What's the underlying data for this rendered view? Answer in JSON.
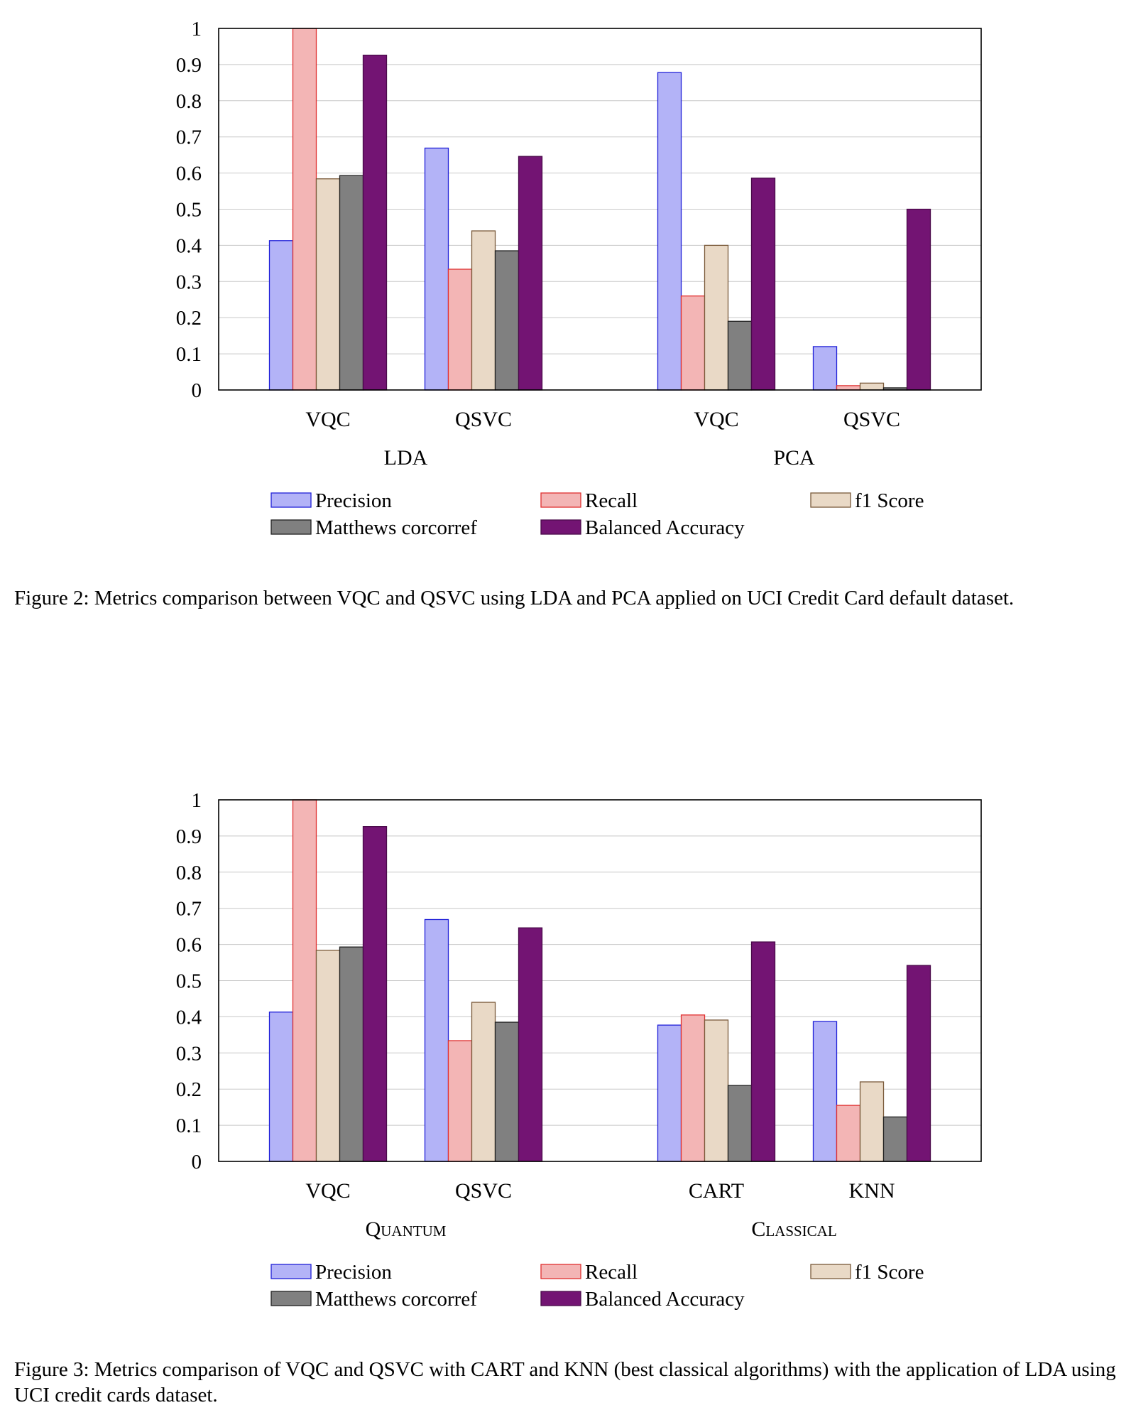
{
  "legend": [
    {
      "label": "Precision",
      "fill": "#b3b3f7",
      "stroke": "#2020d8"
    },
    {
      "label": "Recall",
      "fill": "#f3b5b5",
      "stroke": "#e03030"
    },
    {
      "label": "f1 Score",
      "fill": "#e9d9c6",
      "stroke": "#7a5a3a"
    },
    {
      "label": "Matthews corcorref",
      "fill": "#808080",
      "stroke": "#202020"
    },
    {
      "label": "Balanced Accuracy",
      "fill": "#731473",
      "stroke": "#4a0a4a"
    }
  ],
  "chart_data": [
    {
      "type": "bar",
      "title": "",
      "ylim": [
        0,
        1
      ],
      "yticks": [
        "0",
        "0.1",
        "0.2",
        "0.3",
        "0.4",
        "0.5",
        "0.6",
        "0.7",
        "0.8",
        "0.9",
        "1"
      ],
      "grid": true,
      "legend_position": "bottom",
      "groups": [
        {
          "label": "LDA",
          "categories": [
            "VQC",
            "QSVC"
          ]
        },
        {
          "label": "PCA",
          "categories": [
            "VQC",
            "QSVC"
          ]
        }
      ],
      "categories": [
        "VQC",
        "QSVC",
        "VQC",
        "QSVC"
      ],
      "series": [
        {
          "name": "Precision",
          "values": [
            0.413,
            0.669,
            0.878,
            0.12
          ]
        },
        {
          "name": "Recall",
          "values": [
            1.0,
            0.334,
            0.26,
            0.012
          ]
        },
        {
          "name": "f1 Score",
          "values": [
            0.584,
            0.44,
            0.4,
            0.019
          ]
        },
        {
          "name": "Matthews corcorref",
          "values": [
            0.593,
            0.385,
            0.19,
            0.006
          ]
        },
        {
          "name": "Balanced Accuracy",
          "values": [
            0.926,
            0.646,
            0.586,
            0.5
          ]
        }
      ]
    },
    {
      "type": "bar",
      "title": "",
      "ylim": [
        0,
        1
      ],
      "yticks": [
        "0",
        "0.1",
        "0.2",
        "0.3",
        "0.4",
        "0.5",
        "0.6",
        "0.7",
        "0.8",
        "0.9",
        "1"
      ],
      "grid": true,
      "legend_position": "bottom",
      "groups": [
        {
          "label": "Quantum",
          "categories": [
            "VQC",
            "QSVC"
          ]
        },
        {
          "label": "Classical",
          "categories": [
            "CART",
            "KNN"
          ]
        }
      ],
      "categories": [
        "VQC",
        "QSVC",
        "CART",
        "KNN"
      ],
      "series": [
        {
          "name": "Precision",
          "values": [
            0.413,
            0.669,
            0.377,
            0.387
          ]
        },
        {
          "name": "Recall",
          "values": [
            1.0,
            0.334,
            0.405,
            0.155
          ]
        },
        {
          "name": "f1 Score",
          "values": [
            0.584,
            0.44,
            0.391,
            0.22
          ]
        },
        {
          "name": "Matthews corcorref",
          "values": [
            0.593,
            0.385,
            0.21,
            0.123
          ]
        },
        {
          "name": "Balanced Accuracy",
          "values": [
            0.926,
            0.646,
            0.607,
            0.542
          ]
        }
      ]
    }
  ],
  "captions": [
    "Figure 2: Metrics comparison between VQC and QSVC using LDA and PCA applied on UCI Credit Card default dataset.",
    "Figure 3: Metrics comparison of VQC and QSVC with CART and KNN (best classical algorithms) with the application of LDA using UCI credit cards dataset."
  ]
}
